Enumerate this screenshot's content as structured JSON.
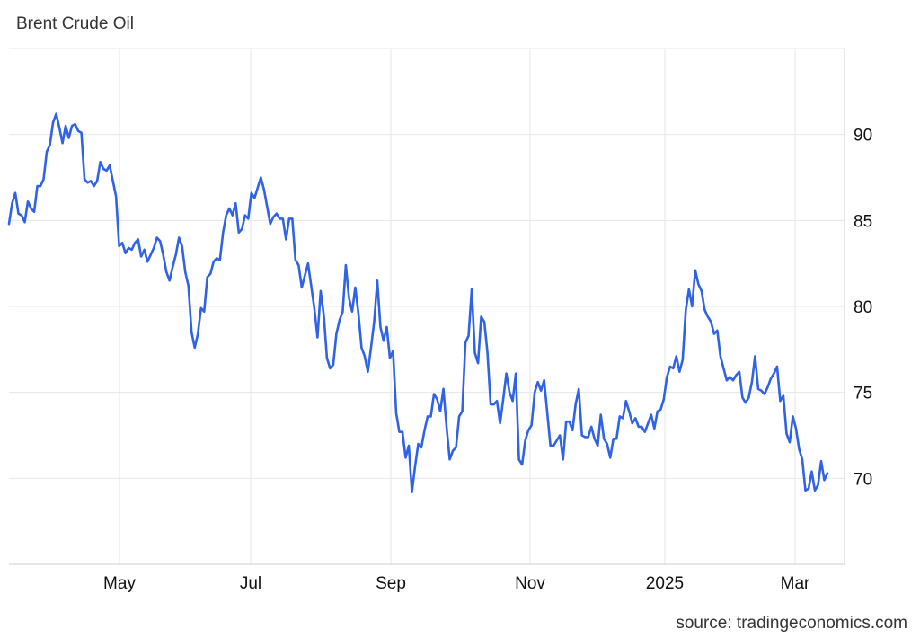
{
  "header": {
    "title": "Brent Crude Oil"
  },
  "footer": {
    "source": "source: tradingeconomics.com"
  },
  "chart_data": {
    "type": "line",
    "title": "Brent Crude Oil",
    "xlabel": "",
    "ylabel": "",
    "x_tick_labels": [
      "May",
      "Jul",
      "Sep",
      "Nov",
      "2025",
      "Mar"
    ],
    "y_ticks": [
      70,
      75,
      80,
      85,
      90
    ],
    "ylim": [
      65,
      95
    ],
    "grid": true,
    "y_axis_side": "right",
    "line_color": "#2f62e6",
    "series": [
      {
        "values": [
          84.8,
          86.0,
          86.6,
          85.4,
          85.3,
          84.9,
          86.1,
          85.7,
          85.5,
          87.0,
          87.0,
          87.4,
          89.0,
          89.4,
          90.7,
          91.2,
          90.4,
          89.5,
          90.5,
          89.8,
          90.5,
          90.6,
          90.2,
          90.1,
          87.4,
          87.2,
          87.3,
          87.0,
          87.3,
          88.4,
          88.0,
          87.9,
          88.2,
          87.3,
          86.4,
          83.5,
          83.7,
          83.1,
          83.4,
          83.3,
          83.7,
          83.9,
          82.9,
          83.3,
          82.6,
          83.0,
          83.4,
          84.0,
          83.8,
          83.0,
          82.0,
          81.5,
          82.3,
          83.0,
          84.0,
          83.5,
          82.0,
          81.2,
          78.5,
          77.6,
          78.4,
          79.9,
          79.7,
          81.7,
          81.9,
          82.6,
          82.8,
          82.7,
          84.3,
          85.3,
          85.7,
          85.3,
          86.0,
          84.3,
          84.5,
          85.3,
          85.1,
          86.6,
          86.3,
          86.9,
          87.5,
          86.8,
          85.8,
          84.8,
          85.2,
          85.4,
          85.1,
          85.1,
          83.9,
          85.1,
          85.1,
          82.7,
          82.4,
          81.1,
          81.8,
          82.5,
          81.2,
          79.9,
          78.2,
          80.9,
          79.5,
          77.0,
          76.4,
          76.6,
          78.4,
          79.2,
          79.7,
          82.4,
          80.5,
          79.7,
          81.1,
          79.6,
          77.6,
          77.1,
          76.2,
          77.6,
          79.1,
          81.5,
          78.8,
          78.0,
          78.8,
          77.0,
          77.4,
          73.8,
          72.7,
          72.7,
          71.2,
          71.9,
          69.2,
          70.7,
          72.0,
          71.8,
          72.8,
          73.6,
          73.6,
          74.9,
          74.6,
          73.9,
          75.2,
          73.0,
          71.1,
          71.6,
          71.8,
          73.6,
          73.9,
          77.9,
          78.3,
          81.0,
          77.3,
          76.7,
          79.4,
          79.1,
          77.3,
          74.3,
          74.3,
          74.5,
          73.2,
          74.6,
          76.1,
          75.0,
          74.5,
          76.1,
          71.1,
          70.8,
          72.2,
          72.8,
          73.1,
          75.0,
          75.6,
          75.1,
          75.7,
          73.8,
          71.9,
          71.9,
          72.2,
          72.5,
          71.1,
          73.3,
          73.3,
          72.8,
          74.3,
          75.2,
          72.5,
          72.4,
          72.4,
          73.0,
          72.3,
          71.9,
          73.7,
          72.3,
          72.0,
          71.2,
          72.3,
          72.3,
          73.6,
          73.5,
          74.5,
          73.9,
          73.2,
          73.5,
          73.0,
          73.0,
          72.7,
          73.2,
          73.7,
          72.9,
          73.9,
          74.0,
          74.6,
          75.9,
          76.5,
          76.4,
          77.1,
          76.2,
          76.9,
          79.8,
          81.0,
          80.0,
          82.1,
          81.3,
          80.9,
          79.8,
          79.4,
          79.1,
          78.4,
          78.6,
          77.1,
          76.4,
          75.7,
          75.9,
          75.7,
          76.0,
          76.2,
          74.7,
          74.4,
          74.7,
          75.6,
          77.1,
          75.2,
          75.1,
          74.9,
          75.3,
          75.8,
          76.1,
          76.5,
          74.5,
          74.8,
          72.6,
          72.1,
          73.6,
          72.9,
          71.7,
          71.1,
          69.3,
          69.4,
          70.4,
          69.3,
          69.6,
          71.0,
          69.9,
          70.3
        ]
      }
    ]
  }
}
